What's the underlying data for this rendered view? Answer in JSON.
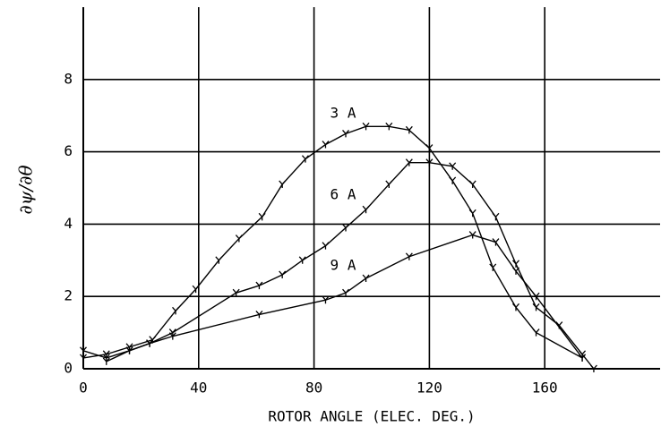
{
  "chart_data": {
    "type": "line",
    "xlabel": "ROTOR ANGLE (ELEC. DEG.)",
    "ylabel": "∂ψ/∂θ",
    "xlim": [
      0,
      200
    ],
    "xticks": [
      0,
      40,
      80,
      120,
      160
    ],
    "ylim": [
      0,
      10
    ],
    "yticks": [
      0,
      2,
      4,
      6,
      8
    ],
    "grid": true,
    "series": [
      {
        "name": "3 A",
        "color": "#000000",
        "x": [
          0,
          8,
          16,
          24,
          32,
          39,
          47,
          54,
          62,
          69,
          77,
          84,
          91,
          98,
          106,
          113,
          120,
          128,
          135,
          142,
          150,
          157,
          173
        ],
        "values": [
          0.3,
          0.4,
          0.6,
          0.8,
          1.6,
          2.2,
          3.0,
          3.6,
          4.2,
          5.1,
          5.8,
          6.2,
          6.5,
          6.7,
          6.7,
          6.6,
          6.1,
          5.2,
          4.3,
          2.8,
          1.7,
          1.0,
          0.3
        ]
      },
      {
        "name": "6 A",
        "color": "#000000",
        "x": [
          8,
          16,
          23,
          31,
          53,
          61,
          69,
          76,
          84,
          91,
          98,
          106,
          113,
          120,
          128,
          135,
          143,
          150,
          157,
          165,
          173,
          177
        ],
        "values": [
          0.2,
          0.5,
          0.7,
          1.0,
          2.1,
          2.3,
          2.6,
          3.0,
          3.4,
          3.9,
          4.4,
          5.1,
          5.7,
          5.7,
          5.6,
          5.1,
          4.2,
          2.9,
          1.7,
          1.2,
          0.4,
          0
        ]
      },
      {
        "name": "9 A",
        "color": "#000000",
        "x": [
          0,
          8,
          16,
          23,
          31,
          61,
          84,
          91,
          98,
          113,
          135,
          143,
          150,
          157,
          173
        ],
        "values": [
          0.5,
          0.3,
          0.5,
          0.7,
          0.9,
          1.5,
          1.9,
          2.1,
          2.5,
          3.1,
          3.7,
          3.5,
          2.7,
          2.0,
          0.3
        ]
      }
    ]
  }
}
